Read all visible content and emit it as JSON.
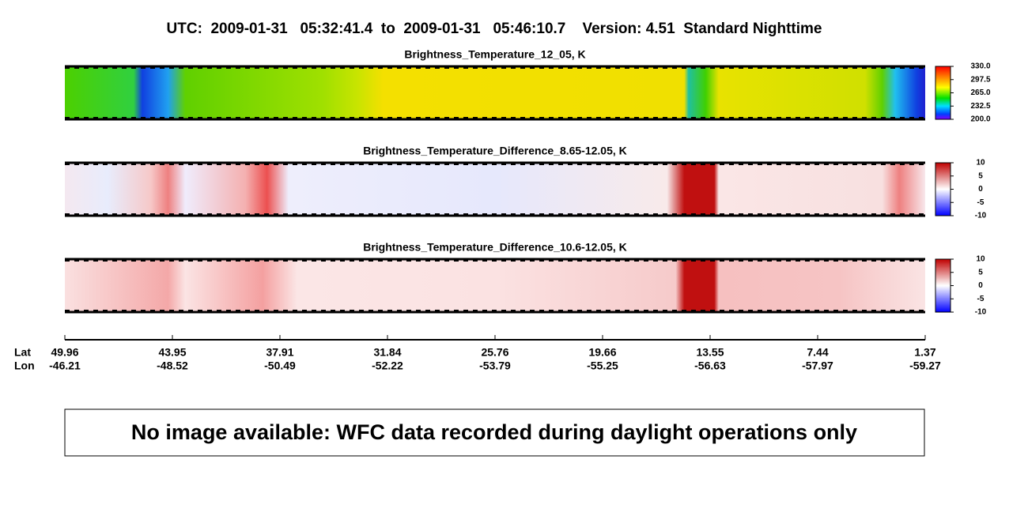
{
  "header": {
    "title": "UTC:  2009-01-31   05:32:41.4  to  2009-01-31   05:46:10.7    Version: 4.51  Standard Nighttime"
  },
  "panels": [
    {
      "title": "Brightness_Temperature_12_05, K",
      "colorbar_ticks": [
        "330.0",
        "297.5",
        "265.0",
        "232.5",
        "200.0"
      ]
    },
    {
      "title": "Brightness_Temperature_Difference_8.65-12.05, K",
      "colorbar_ticks": [
        "10",
        "5",
        "0",
        "-5",
        "-10"
      ]
    },
    {
      "title": "Brightness_Temperature_Difference_10.6-12.05, K",
      "colorbar_ticks": [
        "10",
        "5",
        "0",
        "-5",
        "-10"
      ]
    }
  ],
  "axis": {
    "lat_label": "Lat",
    "lon_label": "Lon",
    "lat": [
      "49.96",
      "43.95",
      "37.91",
      "31.84",
      "25.76",
      "19.66",
      "13.55",
      "7.44",
      "1.37"
    ],
    "lon": [
      "-46.21",
      "-48.52",
      "-50.49",
      "-52.22",
      "-53.79",
      "-55.25",
      "-56.63",
      "-57.97",
      "-59.27"
    ]
  },
  "message": "No image available: WFC data recorded during daylight operations only"
}
